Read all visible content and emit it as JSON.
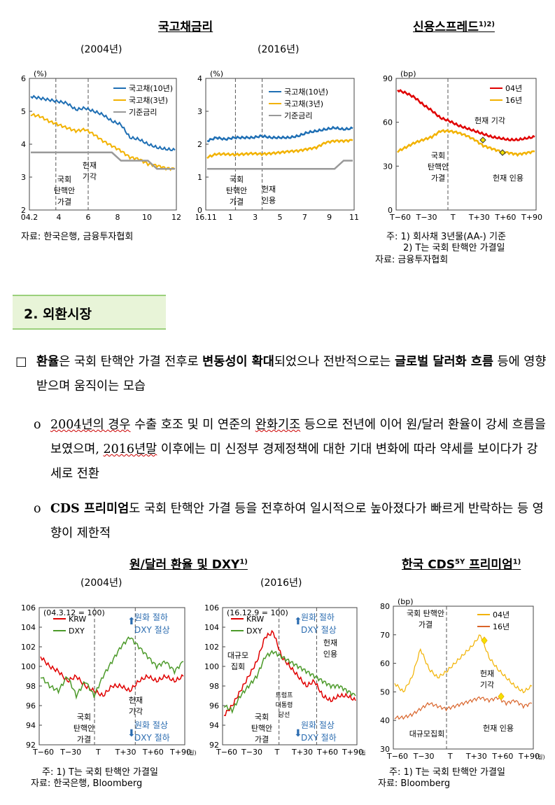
{
  "fig1": {
    "title": "국고채금리",
    "sub_a": "(2004년)",
    "sub_b": "(2016년)",
    "source": "자료: 한국은행, 금융투자협회",
    "chart_a": {
      "type": "line",
      "unit": "(%)",
      "yticks": [
        "6",
        "5",
        "4",
        "3",
        "2"
      ],
      "xticks": [
        "04.2",
        "4",
        "6",
        "8",
        "10",
        "12"
      ],
      "legend": [
        "국고채(10년)",
        "국고채(3년)",
        "기준금리"
      ],
      "annot1": [
        "국회",
        "탄핵안",
        "가결"
      ],
      "annot2": [
        "헌재",
        "기각"
      ],
      "ylim": [
        2,
        6
      ],
      "series": [
        {
          "name": "국고채(10년)",
          "values": [
            5.45,
            5.4,
            5.35,
            5.3,
            5.25,
            5.05,
            5.1,
            5.0,
            4.9,
            4.7,
            4.6,
            4.2,
            4.15,
            4.0,
            3.9,
            3.85,
            3.82
          ]
        },
        {
          "name": "국고채(3년)",
          "values": [
            4.9,
            4.85,
            4.7,
            4.6,
            4.5,
            4.4,
            4.45,
            4.3,
            4.1,
            3.95,
            3.8,
            3.6,
            3.55,
            3.4,
            3.35,
            3.27,
            3.25
          ]
        },
        {
          "name": "기준금리",
          "values": [
            3.75,
            3.75,
            3.75,
            3.75,
            3.75,
            3.75,
            3.75,
            3.75,
            3.75,
            3.75,
            3.5,
            3.5,
            3.5,
            3.5,
            3.25,
            3.25,
            3.25
          ]
        }
      ]
    },
    "chart_b": {
      "type": "line",
      "unit": "(%)",
      "yticks": [
        "4",
        "3",
        "2",
        "1",
        "0"
      ],
      "xticks": [
        "16.11",
        "1",
        "3",
        "5",
        "7",
        "9",
        "11"
      ],
      "legend": [
        "국고채(10년)",
        "국고채(3년)",
        "기준금리"
      ],
      "annot1": [
        "국회",
        "탄핵안",
        "가결"
      ],
      "annot2": [
        "헌재",
        "인용"
      ],
      "ylim": [
        0,
        4
      ],
      "series": [
        {
          "name": "국고채(10년)",
          "values": [
            2.1,
            2.2,
            2.15,
            2.2,
            2.2,
            2.2,
            2.25,
            2.2,
            2.2,
            2.2,
            2.25,
            2.35,
            2.4,
            2.45,
            2.5,
            2.45,
            2.48
          ]
        },
        {
          "name": "국고채(3년)",
          "values": [
            1.6,
            1.7,
            1.7,
            1.68,
            1.7,
            1.72,
            1.7,
            1.72,
            1.75,
            1.78,
            1.8,
            1.85,
            1.9,
            2.05,
            2.1,
            2.1,
            2.12
          ]
        },
        {
          "name": "기준금리",
          "values": [
            1.25,
            1.25,
            1.25,
            1.25,
            1.25,
            1.25,
            1.25,
            1.25,
            1.25,
            1.25,
            1.25,
            1.25,
            1.25,
            1.25,
            1.25,
            1.5,
            1.5
          ]
        }
      ]
    }
  },
  "fig2": {
    "title": "신용스프레드",
    "sup": "1)2)",
    "notes": [
      "주: 1) 회사채 3년물(AA-) 기준",
      "2) T는 국회 탄핵안 가결일",
      "자료: 금융투자협회"
    ],
    "chart": {
      "type": "line",
      "unit": "(bp)",
      "yticks": [
        "90",
        "60",
        "30",
        "0"
      ],
      "xticks": [
        "T−60",
        "T−30",
        "T",
        "T+30",
        "T+60",
        "T+90"
      ],
      "legend": [
        "04년",
        "16년"
      ],
      "annot1": [
        "국회",
        "탄핵안",
        "가결"
      ],
      "annot2": [
        "헌재 기각"
      ],
      "annot3": [
        "헌재 인용"
      ],
      "ylim": [
        0,
        90
      ],
      "series": [
        {
          "name": "04년",
          "values": [
            82,
            80,
            77,
            72,
            68,
            63,
            61,
            58,
            56,
            54,
            52,
            50,
            49,
            48,
            48,
            49,
            50
          ]
        },
        {
          "name": "16년",
          "values": [
            40,
            43,
            46,
            48,
            50,
            54,
            54,
            53,
            51,
            48,
            44,
            42,
            40,
            39,
            38,
            39,
            40
          ]
        }
      ]
    }
  },
  "section": {
    "title": "2. 외환시장"
  },
  "para1": {
    "marker": "□",
    "parts": [
      "환율",
      "은 국회 탄핵안 가결 전후로 ",
      "변동성이 확대",
      "되었으나 전반적으로는 ",
      "글로벌 달러화 흐름",
      " 등에 영향받으며 움직이는 모습"
    ]
  },
  "para2": {
    "marker": "o",
    "parts": [
      "2004년의 경우",
      " 수출 호조 및 미 연준의 ",
      "완화기조",
      " 등으로 전년에 이어 원/달러 환율이 강세 흐름을 보였으며, ",
      "2016년말",
      " 이후에는 미 신정부 경제정책에 대한 기대 변화에 따라 약세를 보이다가 강세로 전환"
    ]
  },
  "para3": {
    "marker": "o",
    "parts": [
      "CDS 프리미엄",
      "도 국회 탄핵안 가결 등을 전후하여 일시적으로 높아졌다가 빠르게 반락하는 등 영향이 제한적"
    ]
  },
  "fig3": {
    "title": "원/달러 환율 및 DXY",
    "sup": "1)",
    "sub_a": "(2004년)",
    "sub_b": "(2016년)",
    "notes": [
      "주: 1) T는 국회 탄핵안 가결일",
      "자료: 한국은행, Bloomberg"
    ],
    "chart_a": {
      "type": "line",
      "base": "(04.3.12  = 100)",
      "yticks": [
        "106",
        "104",
        "102",
        "100",
        "98",
        "96",
        "94",
        "92"
      ],
      "xticks": [
        "T−60",
        "T−30",
        "T",
        "T+30",
        "T+60",
        "T+90"
      ],
      "xunit": "(일)",
      "legend": [
        "KRW",
        "DXY"
      ],
      "up": [
        "원화 절하",
        "DXY 절상"
      ],
      "down": [
        "원화 절상",
        "DXY 절하"
      ],
      "annot1": [
        "국회",
        "탄핵안",
        "가결"
      ],
      "annot2": [
        "헌재",
        "기각"
      ],
      "ylim": [
        92,
        106
      ],
      "series": [
        {
          "name": "KRW",
          "values": [
            101,
            100,
            99.5,
            98.5,
            99,
            98,
            97.5,
            97,
            98,
            98,
            97.5,
            98.5,
            99,
            98.5,
            99,
            98.5,
            99
          ]
        },
        {
          "name": "DXY",
          "values": [
            99,
            98,
            97.5,
            99,
            97,
            98.5,
            97,
            99,
            100.5,
            102,
            103,
            102,
            101,
            100,
            100.5,
            99.5,
            100.5
          ]
        }
      ]
    },
    "chart_b": {
      "type": "line",
      "base": "(16.12.9  = 100)",
      "yticks": [
        "106",
        "104",
        "102",
        "100",
        "98",
        "96",
        "94",
        "92"
      ],
      "xticks": [
        "T−60",
        "T−30",
        "T",
        "T+30",
        "T+60",
        "T+90"
      ],
      "xunit": "(일)",
      "legend": [
        "KRW",
        "DXY"
      ],
      "up": [
        "원화 절하",
        "DXY 절상"
      ],
      "down": [
        "원화 절상",
        "DXY 절하"
      ],
      "annot1": [
        "국회",
        "탄핵안",
        "가결"
      ],
      "annot2": [
        "헌재",
        "인용"
      ],
      "annot3": [
        "대규모",
        "집회"
      ],
      "annot4": [
        "트럼프",
        "대통령",
        "당선"
      ],
      "ylim": [
        92,
        106
      ],
      "series": [
        {
          "name": "KRW",
          "values": [
            95,
            96,
            97.5,
            99,
            100.5,
            103,
            103.5,
            101,
            100,
            99,
            98,
            98.5,
            97,
            96.5,
            97,
            97,
            96.5
          ]
        },
        {
          "name": "DXY",
          "values": [
            96,
            95.5,
            97,
            98,
            99,
            101,
            101.5,
            101,
            100.5,
            100,
            99.5,
            99,
            98.5,
            98,
            98,
            97.5,
            97
          ]
        }
      ]
    }
  },
  "fig4": {
    "title": "한국 CDS",
    "sup_a": "5Y",
    "title_b": " 프리미엄",
    "sup_b": "1)",
    "notes": [
      "주: 1) T는 국회 탄핵안 가결일",
      "자료: Bloomberg"
    ],
    "chart": {
      "type": "line",
      "unit": "(bp)",
      "yticks": [
        "80",
        "70",
        "60",
        "50",
        "40",
        "30"
      ],
      "xticks": [
        "T−60",
        "T−30",
        "T",
        "T+30",
        "T+60",
        "T+90"
      ],
      "xunit": "(일)",
      "legend": [
        "04년",
        "16년"
      ],
      "annot1": [
        "국회 탄핵안",
        "가결"
      ],
      "annot2": [
        "헌재",
        "기각"
      ],
      "annot3": [
        "헌재 인용"
      ],
      "annot4": [
        "대규모집회"
      ],
      "ylim": [
        30,
        80
      ],
      "series": [
        {
          "name": "04년",
          "values": [
            53,
            50,
            55,
            65,
            58,
            55,
            57,
            60,
            63,
            66,
            70,
            62,
            58,
            55,
            52,
            50,
            52
          ]
        },
        {
          "name": "16년",
          "values": [
            41,
            41,
            42,
            44,
            46,
            45,
            44,
            45,
            46,
            47,
            48,
            47,
            48,
            46,
            47,
            45,
            46
          ]
        }
      ]
    }
  }
}
